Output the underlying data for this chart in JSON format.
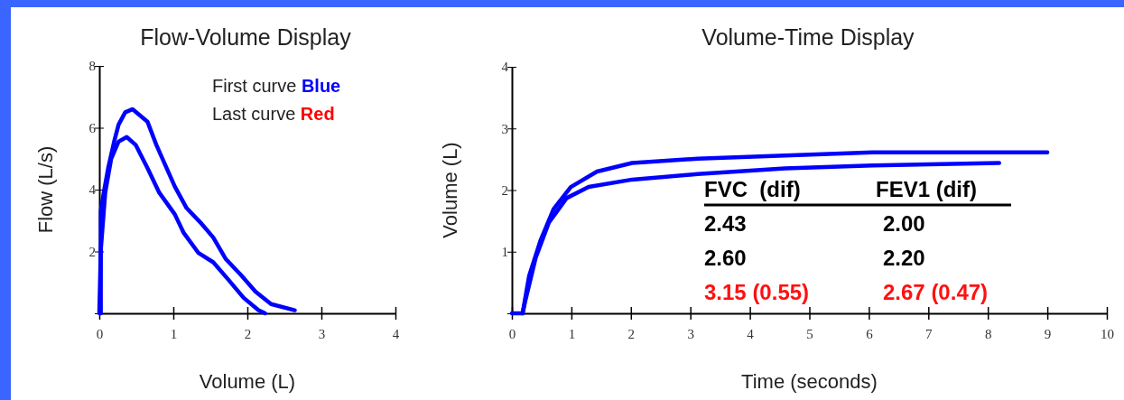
{
  "chart_data": [
    {
      "type": "line",
      "title": "Flow-Volume Display",
      "xlabel": "Volume (L)",
      "ylabel": "Flow (L/s)",
      "xlim": [
        0,
        4
      ],
      "xticks": [
        0,
        1,
        2,
        3,
        4
      ],
      "ylim": [
        0,
        8
      ],
      "yticks": [
        {
          "value": 0,
          "label": null
        },
        2,
        4,
        6,
        8
      ],
      "line_style": "solid",
      "annotations": [
        "First curve",
        "Blue",
        "Last curve",
        "Red"
      ],
      "series": [
        {
          "color": "#0000ff",
          "x": [
            0.02,
            0.02,
            0.06,
            0.12,
            0.2,
            0.26,
            0.35,
            0.45,
            0.65,
            0.77,
            0.89,
            1.02,
            1.18,
            1.38,
            1.54,
            1.71,
            1.91,
            2.11,
            2.32,
            2.64
          ],
          "values": [
            0,
            3.3,
            3.9,
            4.7,
            5.55,
            6.1,
            6.5,
            6.6,
            6.2,
            5.45,
            4.8,
            4.1,
            3.4,
            2.9,
            2.45,
            1.75,
            1.25,
            0.7,
            0.3,
            0.1
          ]
        },
        {
          "color": "#0000ff",
          "x": [
            0,
            0.02,
            0.08,
            0.16,
            0.26,
            0.37,
            0.49,
            0.65,
            0.81,
            1.02,
            1.14,
            1.34,
            1.54,
            1.75,
            1.95,
            2.15,
            2.24
          ],
          "values": [
            0,
            2.05,
            3.9,
            5.0,
            5.55,
            5.7,
            5.45,
            4.7,
            3.9,
            3.2,
            2.6,
            1.95,
            1.65,
            1.07,
            0.5,
            0.1,
            0
          ]
        }
      ]
    },
    {
      "type": "line",
      "title": "Volume-Time Display",
      "xlabel": "Time (seconds)",
      "ylabel": "Volume (L)",
      "xlim": [
        0,
        10
      ],
      "xticks": [
        0,
        1,
        2,
        3,
        4,
        5,
        6,
        7,
        8,
        9,
        10
      ],
      "ylim": [
        0,
        4
      ],
      "yticks": [
        {
          "value": 0,
          "label": null
        },
        1,
        2,
        3,
        4
      ],
      "line_style": "solid",
      "annotations": [
        "FVC  (dif)",
        "FEV1 (dif)",
        "2.43",
        "2.00",
        "2.60",
        "2.20",
        "3.15 (0.55)",
        "2.67 (0.47)"
      ],
      "series": [
        {
          "color": "#0000ff",
          "x": [
            0,
            0.18,
            0.29,
            0.48,
            0.7,
            0.99,
            1.43,
            2.02,
            3.12,
            4.59,
            6.06,
            9.0
          ],
          "values": [
            0,
            0,
            0.61,
            1.18,
            1.69,
            2.05,
            2.3,
            2.44,
            2.51,
            2.56,
            2.61,
            2.61
          ]
        },
        {
          "color": "#0000ff",
          "x": [
            0.18,
            0.22,
            0.4,
            0.62,
            0.92,
            1.29,
            2.02,
            3.12,
            4.59,
            6.06,
            8.19
          ],
          "values": [
            0,
            0.18,
            0.9,
            1.47,
            1.87,
            2.05,
            2.17,
            2.26,
            2.35,
            2.4,
            2.44
          ]
        }
      ]
    }
  ]
}
